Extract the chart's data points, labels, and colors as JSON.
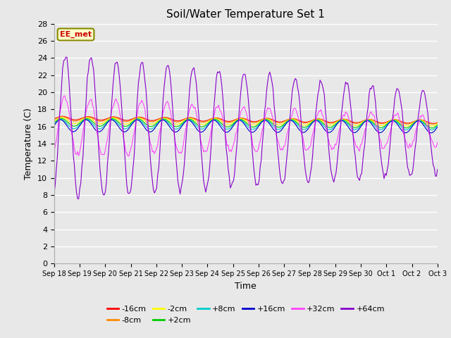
{
  "title": "Soil/Water Temperature Set 1",
  "xlabel": "Time",
  "ylabel": "Temperature (C)",
  "ylim": [
    0,
    28
  ],
  "yticks": [
    0,
    2,
    4,
    6,
    8,
    10,
    12,
    14,
    16,
    18,
    20,
    22,
    24,
    26,
    28
  ],
  "bg_color": "#e8e8e8",
  "series": [
    {
      "label": "-16cm",
      "color": "#ff0000",
      "depth": -16
    },
    {
      "label": "-8cm",
      "color": "#ff8800",
      "depth": -8
    },
    {
      "label": "-2cm",
      "color": "#ffff00",
      "depth": -2
    },
    {
      "label": "+2cm",
      "color": "#00cc00",
      "depth": 2
    },
    {
      "label": "+8cm",
      "color": "#00cccc",
      "depth": 8
    },
    {
      "label": "+16cm",
      "color": "#0000cc",
      "depth": 16
    },
    {
      "label": "+32cm",
      "color": "#ff44ff",
      "depth": 32
    },
    {
      "label": "+64cm",
      "color": "#8800cc",
      "depth": 64
    }
  ],
  "annotation": {
    "text": "EE_met",
    "color": "#cc0000",
    "bg": "#ffffcc",
    "border": "#888800"
  },
  "xtick_labels": [
    "Sep 18",
    "Sep 19",
    "Sep 20",
    "Sep 21",
    "Sep 22",
    "Sep 23",
    "Sep 24",
    "Sep 25",
    "Sep 26",
    "Sep 27",
    "Sep 28",
    "Sep 29",
    "Sep 30",
    "Oct 1",
    "Oct 2",
    "Oct 3"
  ]
}
